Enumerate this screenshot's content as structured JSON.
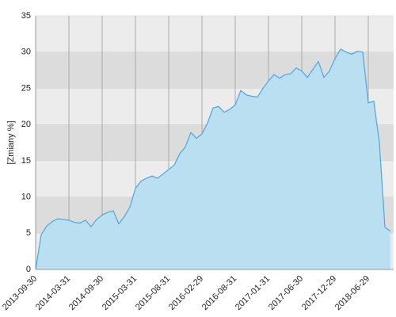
{
  "chart_data": {
    "type": "area",
    "ylabel": "[Zmiany %]",
    "categories": [
      "2013-09-30",
      null,
      null,
      null,
      null,
      null,
      "2014-03-31",
      null,
      null,
      null,
      null,
      null,
      "2014-09-30",
      null,
      null,
      null,
      null,
      null,
      "2015-03-31",
      null,
      null,
      null,
      null,
      null,
      "2015-08-31",
      null,
      null,
      null,
      null,
      null,
      "2016-02-29",
      null,
      null,
      null,
      null,
      null,
      "2016-08-31",
      null,
      null,
      null,
      null,
      null,
      "2017-01-31",
      null,
      null,
      null,
      null,
      null,
      "2017-06-30",
      null,
      null,
      null,
      null,
      null,
      "2017-12-29",
      null,
      null,
      null,
      null,
      null,
      "2018-06-29",
      null,
      null,
      null,
      null
    ],
    "values": [
      0,
      4.8,
      6.0,
      6.6,
      7.0,
      6.9,
      6.8,
      6.5,
      6.4,
      6.8,
      5.9,
      6.9,
      7.5,
      7.9,
      8.1,
      6.3,
      7.3,
      8.6,
      11.2,
      12.2,
      12.6,
      12.9,
      12.6,
      13.2,
      13.8,
      14.4,
      16.0,
      16.9,
      18.9,
      18.1,
      18.7,
      20.2,
      22.3,
      22.5,
      21.7,
      22.1,
      22.7,
      24.7,
      24.1,
      23.9,
      23.8,
      25.0,
      26.0,
      26.9,
      26.4,
      26.9,
      27.0,
      27.8,
      27.4,
      26.5,
      27.6,
      28.7,
      26.5,
      27.4,
      29.1,
      30.4,
      30.0,
      29.7,
      30.1,
      30.0,
      23.0,
      23.2,
      17.5,
      5.8,
      5.3
    ],
    "color": "#4ea6e0",
    "fill": "#b9dff0",
    "ylim": [
      0,
      35
    ],
    "yticks": [
      0,
      5,
      10,
      15,
      20,
      25,
      30,
      35
    ],
    "grid": true,
    "band_colors": [
      "#ececec",
      "#dcdcdc"
    ]
  }
}
